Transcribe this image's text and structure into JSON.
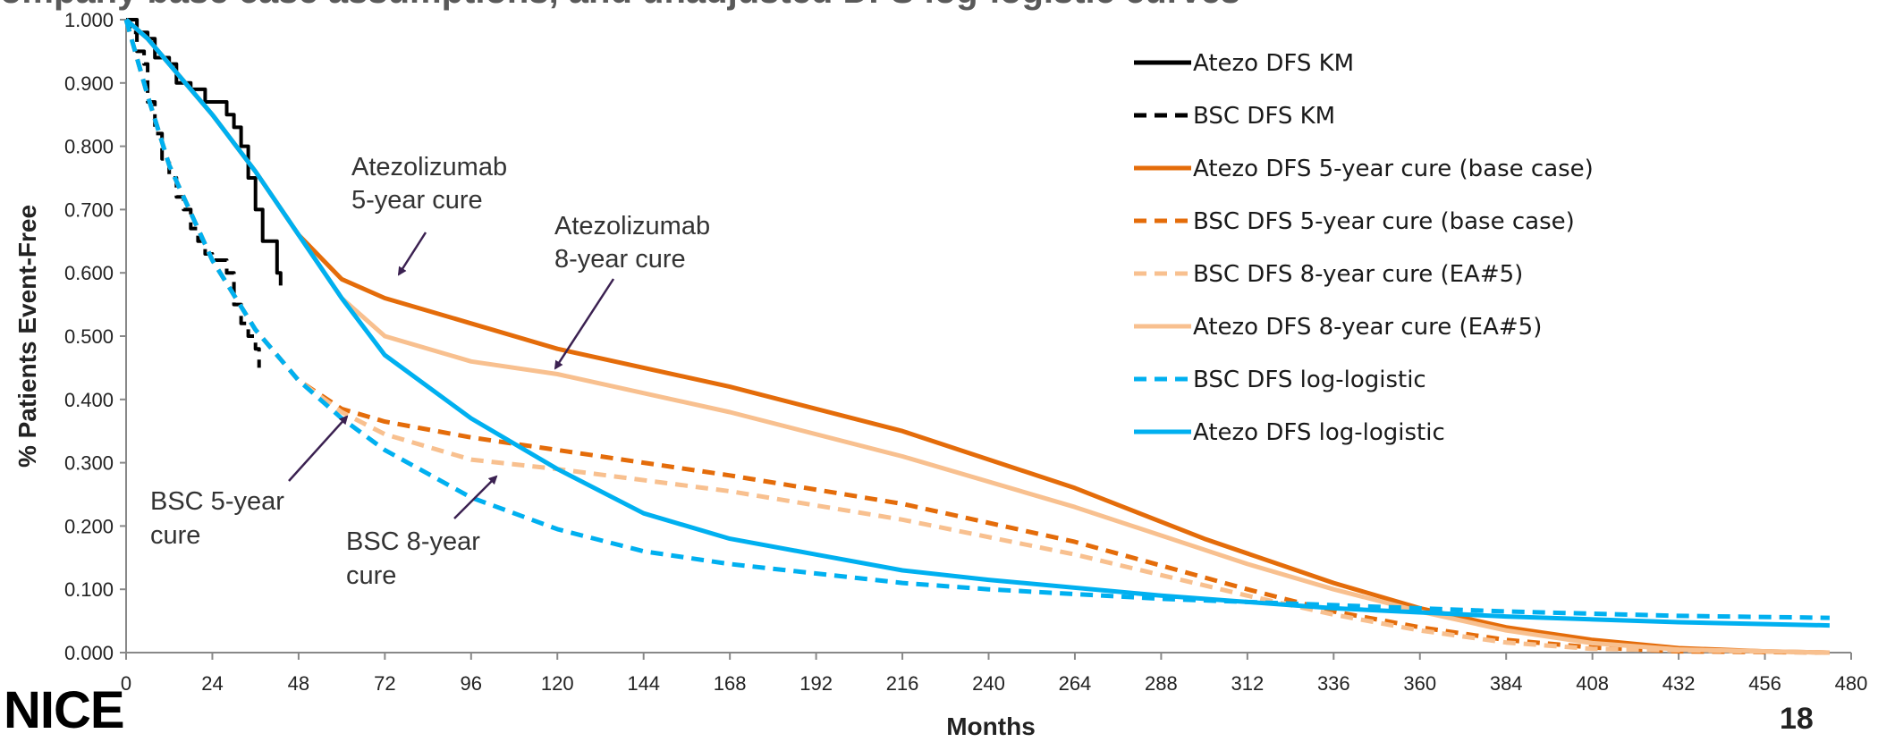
{
  "slide": {
    "title": "ompany base case assumptions, and unadjusted DFS log-logistic curves",
    "logo_text": "NICE",
    "page_number": "18"
  },
  "annotations": {
    "atezo_5yr": [
      "Atezolizumab",
      "5-year cure"
    ],
    "atezo_8yr": [
      "Atezolizumab",
      "8-year cure"
    ],
    "bsc_5yr": [
      "BSC 5-year",
      "cure"
    ],
    "bsc_8yr": [
      "BSC 8-year",
      "cure"
    ]
  },
  "colors": {
    "black": "#000000",
    "dark_orange": "#e46c0a",
    "light_orange": "#f8c08f",
    "blue": "#00b0f0",
    "arrow": "#3b2151",
    "axis": "#888888"
  },
  "chart_data": {
    "type": "line",
    "title": "",
    "xlabel": "Months",
    "ylabel": "% Patients Event-Free",
    "xlim": [
      0,
      480
    ],
    "ylim": [
      0,
      1
    ],
    "x_ticks": [
      "0",
      "24",
      "48",
      "72",
      "96",
      "120",
      "144",
      "168",
      "192",
      "216",
      "240",
      "264",
      "288",
      "312",
      "336",
      "360",
      "384",
      "408",
      "432",
      "456",
      "480"
    ],
    "y_ticks": [
      "0.000",
      "0.100",
      "0.200",
      "0.300",
      "0.400",
      "0.500",
      "0.600",
      "0.700",
      "0.800",
      "0.900",
      "1.000"
    ],
    "grid": false,
    "legend_position": "top-right",
    "series": [
      {
        "name": "Atezo DFS KM",
        "color": "#000000",
        "dash": "solid",
        "step": true,
        "x": [
          0,
          3,
          6,
          8,
          12,
          14,
          18,
          22,
          24,
          28,
          30,
          32,
          34,
          36,
          38,
          40,
          42,
          43
        ],
        "y": [
          1.0,
          0.98,
          0.97,
          0.94,
          0.93,
          0.9,
          0.89,
          0.87,
          0.87,
          0.85,
          0.83,
          0.8,
          0.75,
          0.7,
          0.65,
          0.65,
          0.6,
          0.58
        ]
      },
      {
        "name": "BSC DFS KM",
        "color": "#000000",
        "dash": "dash",
        "step": true,
        "x": [
          0,
          1,
          3,
          5,
          6,
          8,
          10,
          12,
          14,
          16,
          18,
          20,
          22,
          24,
          26,
          28,
          30,
          32,
          34,
          36,
          37
        ],
        "y": [
          1.0,
          0.98,
          0.95,
          0.93,
          0.87,
          0.82,
          0.78,
          0.75,
          0.72,
          0.7,
          0.67,
          0.65,
          0.63,
          0.62,
          0.62,
          0.6,
          0.55,
          0.52,
          0.5,
          0.48,
          0.45
        ]
      },
      {
        "name": "Atezo DFS 5-year cure (base case)",
        "color": "#e46c0a",
        "dash": "solid",
        "x": [
          0,
          6,
          12,
          24,
          36,
          48,
          60,
          72,
          96,
          120,
          168,
          216,
          264,
          300,
          336,
          360,
          384,
          408,
          432,
          456,
          474
        ],
        "y": [
          1.0,
          0.97,
          0.93,
          0.85,
          0.76,
          0.66,
          0.59,
          0.56,
          0.52,
          0.48,
          0.42,
          0.35,
          0.26,
          0.18,
          0.11,
          0.07,
          0.04,
          0.02,
          0.007,
          0.002,
          0.0
        ]
      },
      {
        "name": "BSC DFS 5-year cure (base case)",
        "color": "#e46c0a",
        "dash": "dash",
        "x": [
          0,
          6,
          12,
          24,
          36,
          48,
          60,
          72,
          96,
          120,
          168,
          216,
          264,
          312,
          336,
          360,
          384,
          408,
          432,
          474
        ],
        "y": [
          1.0,
          0.88,
          0.77,
          0.62,
          0.51,
          0.43,
          0.385,
          0.365,
          0.34,
          0.32,
          0.28,
          0.235,
          0.175,
          0.1,
          0.065,
          0.04,
          0.02,
          0.008,
          0.002,
          0.0
        ]
      },
      {
        "name": "BSC DFS 8-year cure (EA#5)",
        "color": "#f8c08f",
        "dash": "dash",
        "x": [
          0,
          6,
          12,
          24,
          36,
          48,
          60,
          72,
          96,
          120,
          168,
          216,
          264,
          312,
          336,
          360,
          384,
          408,
          474
        ],
        "y": [
          1.0,
          0.88,
          0.77,
          0.62,
          0.51,
          0.43,
          0.38,
          0.345,
          0.305,
          0.29,
          0.255,
          0.21,
          0.155,
          0.09,
          0.06,
          0.035,
          0.016,
          0.006,
          0.0
        ]
      },
      {
        "name": "Atezo DFS 8-year cure (EA#5)",
        "color": "#f8c08f",
        "dash": "solid",
        "x": [
          0,
          6,
          12,
          24,
          36,
          48,
          60,
          72,
          96,
          120,
          168,
          216,
          264,
          312,
          336,
          360,
          384,
          408,
          432,
          474
        ],
        "y": [
          1.0,
          0.97,
          0.93,
          0.85,
          0.76,
          0.66,
          0.56,
          0.5,
          0.46,
          0.44,
          0.38,
          0.31,
          0.23,
          0.14,
          0.1,
          0.065,
          0.035,
          0.015,
          0.005,
          0.0
        ]
      },
      {
        "name": "BSC DFS log-logistic",
        "color": "#00b0f0",
        "dash": "dash",
        "x": [
          0,
          6,
          12,
          24,
          36,
          48,
          60,
          72,
          96,
          120,
          144,
          168,
          192,
          216,
          240,
          288,
          336,
          384,
          432,
          474
        ],
        "y": [
          1.0,
          0.88,
          0.77,
          0.62,
          0.51,
          0.43,
          0.37,
          0.32,
          0.245,
          0.195,
          0.16,
          0.14,
          0.125,
          0.11,
          0.1,
          0.085,
          0.075,
          0.065,
          0.058,
          0.055
        ]
      },
      {
        "name": "Atezo DFS log-logistic",
        "color": "#00b0f0",
        "dash": "solid",
        "x": [
          0,
          6,
          12,
          24,
          36,
          48,
          60,
          72,
          96,
          120,
          144,
          168,
          192,
          216,
          240,
          288,
          336,
          384,
          432,
          474
        ],
        "y": [
          1.0,
          0.97,
          0.93,
          0.85,
          0.76,
          0.66,
          0.56,
          0.47,
          0.37,
          0.29,
          0.22,
          0.18,
          0.155,
          0.13,
          0.115,
          0.09,
          0.07,
          0.057,
          0.048,
          0.043
        ]
      }
    ]
  }
}
